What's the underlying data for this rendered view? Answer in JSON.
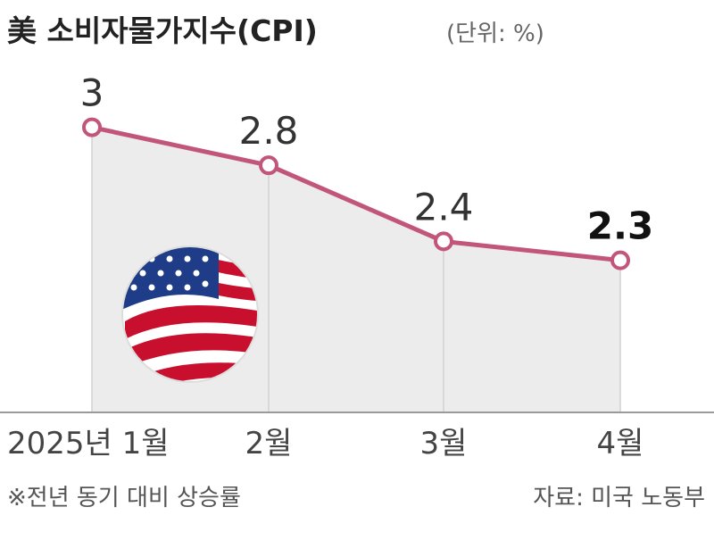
{
  "title": "美 소비자물가지수(CPI)",
  "unit": "(단위: %)",
  "footnote": "※전년 동기 대비 상승률",
  "source": "자료: 미국 노동부",
  "colors": {
    "line": "#c2567a",
    "area": "#ececec",
    "axis": "#9a9a9a"
  },
  "icon": "us-flag-icon",
  "chart_data": {
    "type": "line",
    "categories": [
      "2025년 1월",
      "2월",
      "3월",
      "4월"
    ],
    "values": [
      3,
      2.8,
      2.4,
      2.3
    ],
    "data_labels": [
      "3",
      "2.8",
      "2.4",
      "2.3"
    ],
    "ylim": [
      1.5,
      3.2
    ],
    "grid": false
  }
}
